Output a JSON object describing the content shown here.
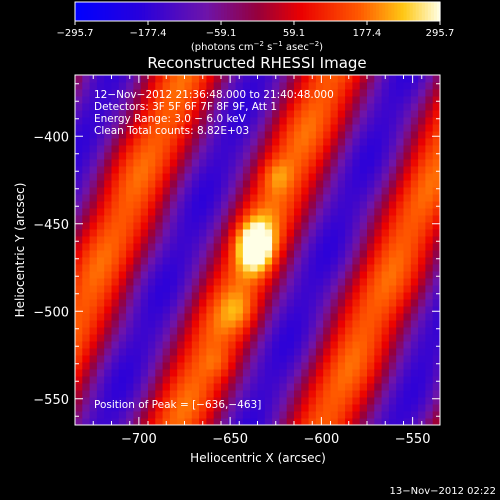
{
  "chart_data": {
    "type": "heatmap",
    "title": "Reconstructed RHESSI Image",
    "xlabel": "Heliocentric X (arcsec)",
    "ylabel": "Heliocentric Y (arcsec)",
    "xlim": [
      -735,
      -535
    ],
    "ylim": [
      -565,
      -365
    ],
    "xticks": [
      -700,
      -650,
      -600,
      -550
    ],
    "yticks": [
      -550,
      -500,
      -450,
      -400
    ],
    "xtick_labels": [
      "−700",
      "−650",
      "−600",
      "−550"
    ],
    "ytick_labels": [
      "−550",
      "−500",
      "−450",
      "−400"
    ],
    "colorbar": {
      "min": -295.7,
      "max": 295.7,
      "ticks": [
        -295.7,
        -177.4,
        -59.1,
        59.1,
        177.4,
        295.7
      ],
      "tick_labels": [
        "−295.7",
        "−177.4",
        "−59.1",
        "59.1",
        "177.4",
        "295.7"
      ],
      "units_prefix": "(photons cm",
      "units_exp1": "−2",
      "units_mid": " s",
      "units_exp2": "−1",
      "units_mid2": " asec",
      "units_exp3": "−2",
      "units_suffix": ")",
      "colormap": "red-temperature"
    },
    "info_lines": [
      "12−Nov−2012 21:36:48.000 to 21:40:48.000",
      "Detectors: 3F 5F 6F 7F 8F 9F, Att 1",
      "Energy Range: 3.0 − 6.0 keV",
      "Clean     Total counts: 8.82E+03"
    ],
    "peak_label": "Position of Peak = [−636,−463]",
    "peak": {
      "x": -636,
      "y": -463,
      "value": 295.7
    },
    "image_model": {
      "stripe_angle_deg": 67,
      "stripe_period_arcsec": 74,
      "stripe_amplitude": 170,
      "stripe_phase_center": [
        -636,
        -463
      ],
      "blobs": [
        {
          "x": -636,
          "y": -463,
          "sigma_x": 7,
          "sigma_y": 10,
          "amp": 260
        },
        {
          "x": -625,
          "y": -422,
          "sigma_x": 6,
          "sigma_y": 7,
          "amp": 70
        },
        {
          "x": -645,
          "y": -500,
          "sigma_x": 7,
          "sigma_y": 8,
          "amp": 60
        },
        {
          "x": -656,
          "y": -530,
          "sigma_x": 6,
          "sigma_y": 6,
          "amp": 40
        }
      ]
    },
    "grid": false
  },
  "footer": {
    "timestamp": "13−Nov−2012 02:22"
  }
}
